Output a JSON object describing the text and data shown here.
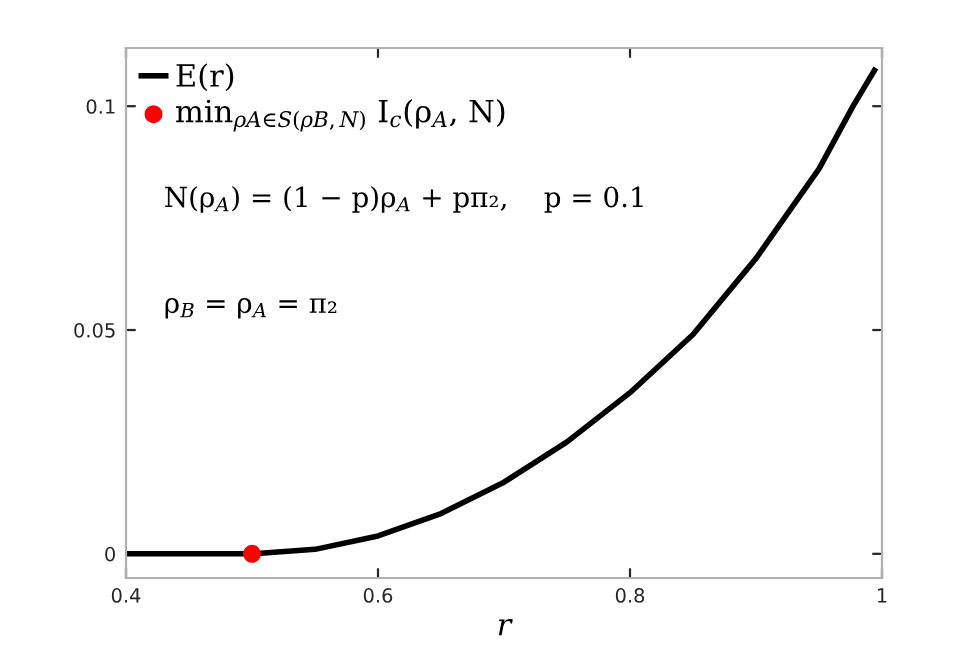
{
  "chart_data": {
    "type": "line",
    "xlabel": "r",
    "xlim": [
      0.4,
      1.0
    ],
    "ylim": [
      -0.0054,
      0.113
    ],
    "xticks": [
      0.4,
      0.6,
      0.8,
      1
    ],
    "yticks": [
      0,
      0.05,
      0.1
    ],
    "series": [
      {
        "name": "E(r)",
        "color": "#000000",
        "x": [
          0.4,
          0.5,
          0.55,
          0.6,
          0.65,
          0.7,
          0.75,
          0.8,
          0.85,
          0.9,
          0.93,
          0.95,
          0.977,
          0.994
        ],
        "values": [
          0,
          0,
          0.001,
          0.004,
          0.009,
          0.016,
          0.025,
          0.036,
          0.049,
          0.066,
          0.078,
          0.086,
          0.1,
          0.108
        ]
      },
      {
        "name": "min$_{ρA∈S(ρB,N)}$ I$_{c}$(ρ$_{A}$, N)",
        "type": "scatter",
        "color": "#ff0000",
        "x": [
          0.5
        ],
        "values": [
          0
        ]
      }
    ],
    "annotations": [
      "N(ρ$_{A}$) = (1 − p)ρ$_{A}$ + pπ₂,    p = 0.1",
      "ρ$_{B}$ = ρ$_{A}$ = π₂"
    ],
    "legend": "top left",
    "grid": false
  }
}
